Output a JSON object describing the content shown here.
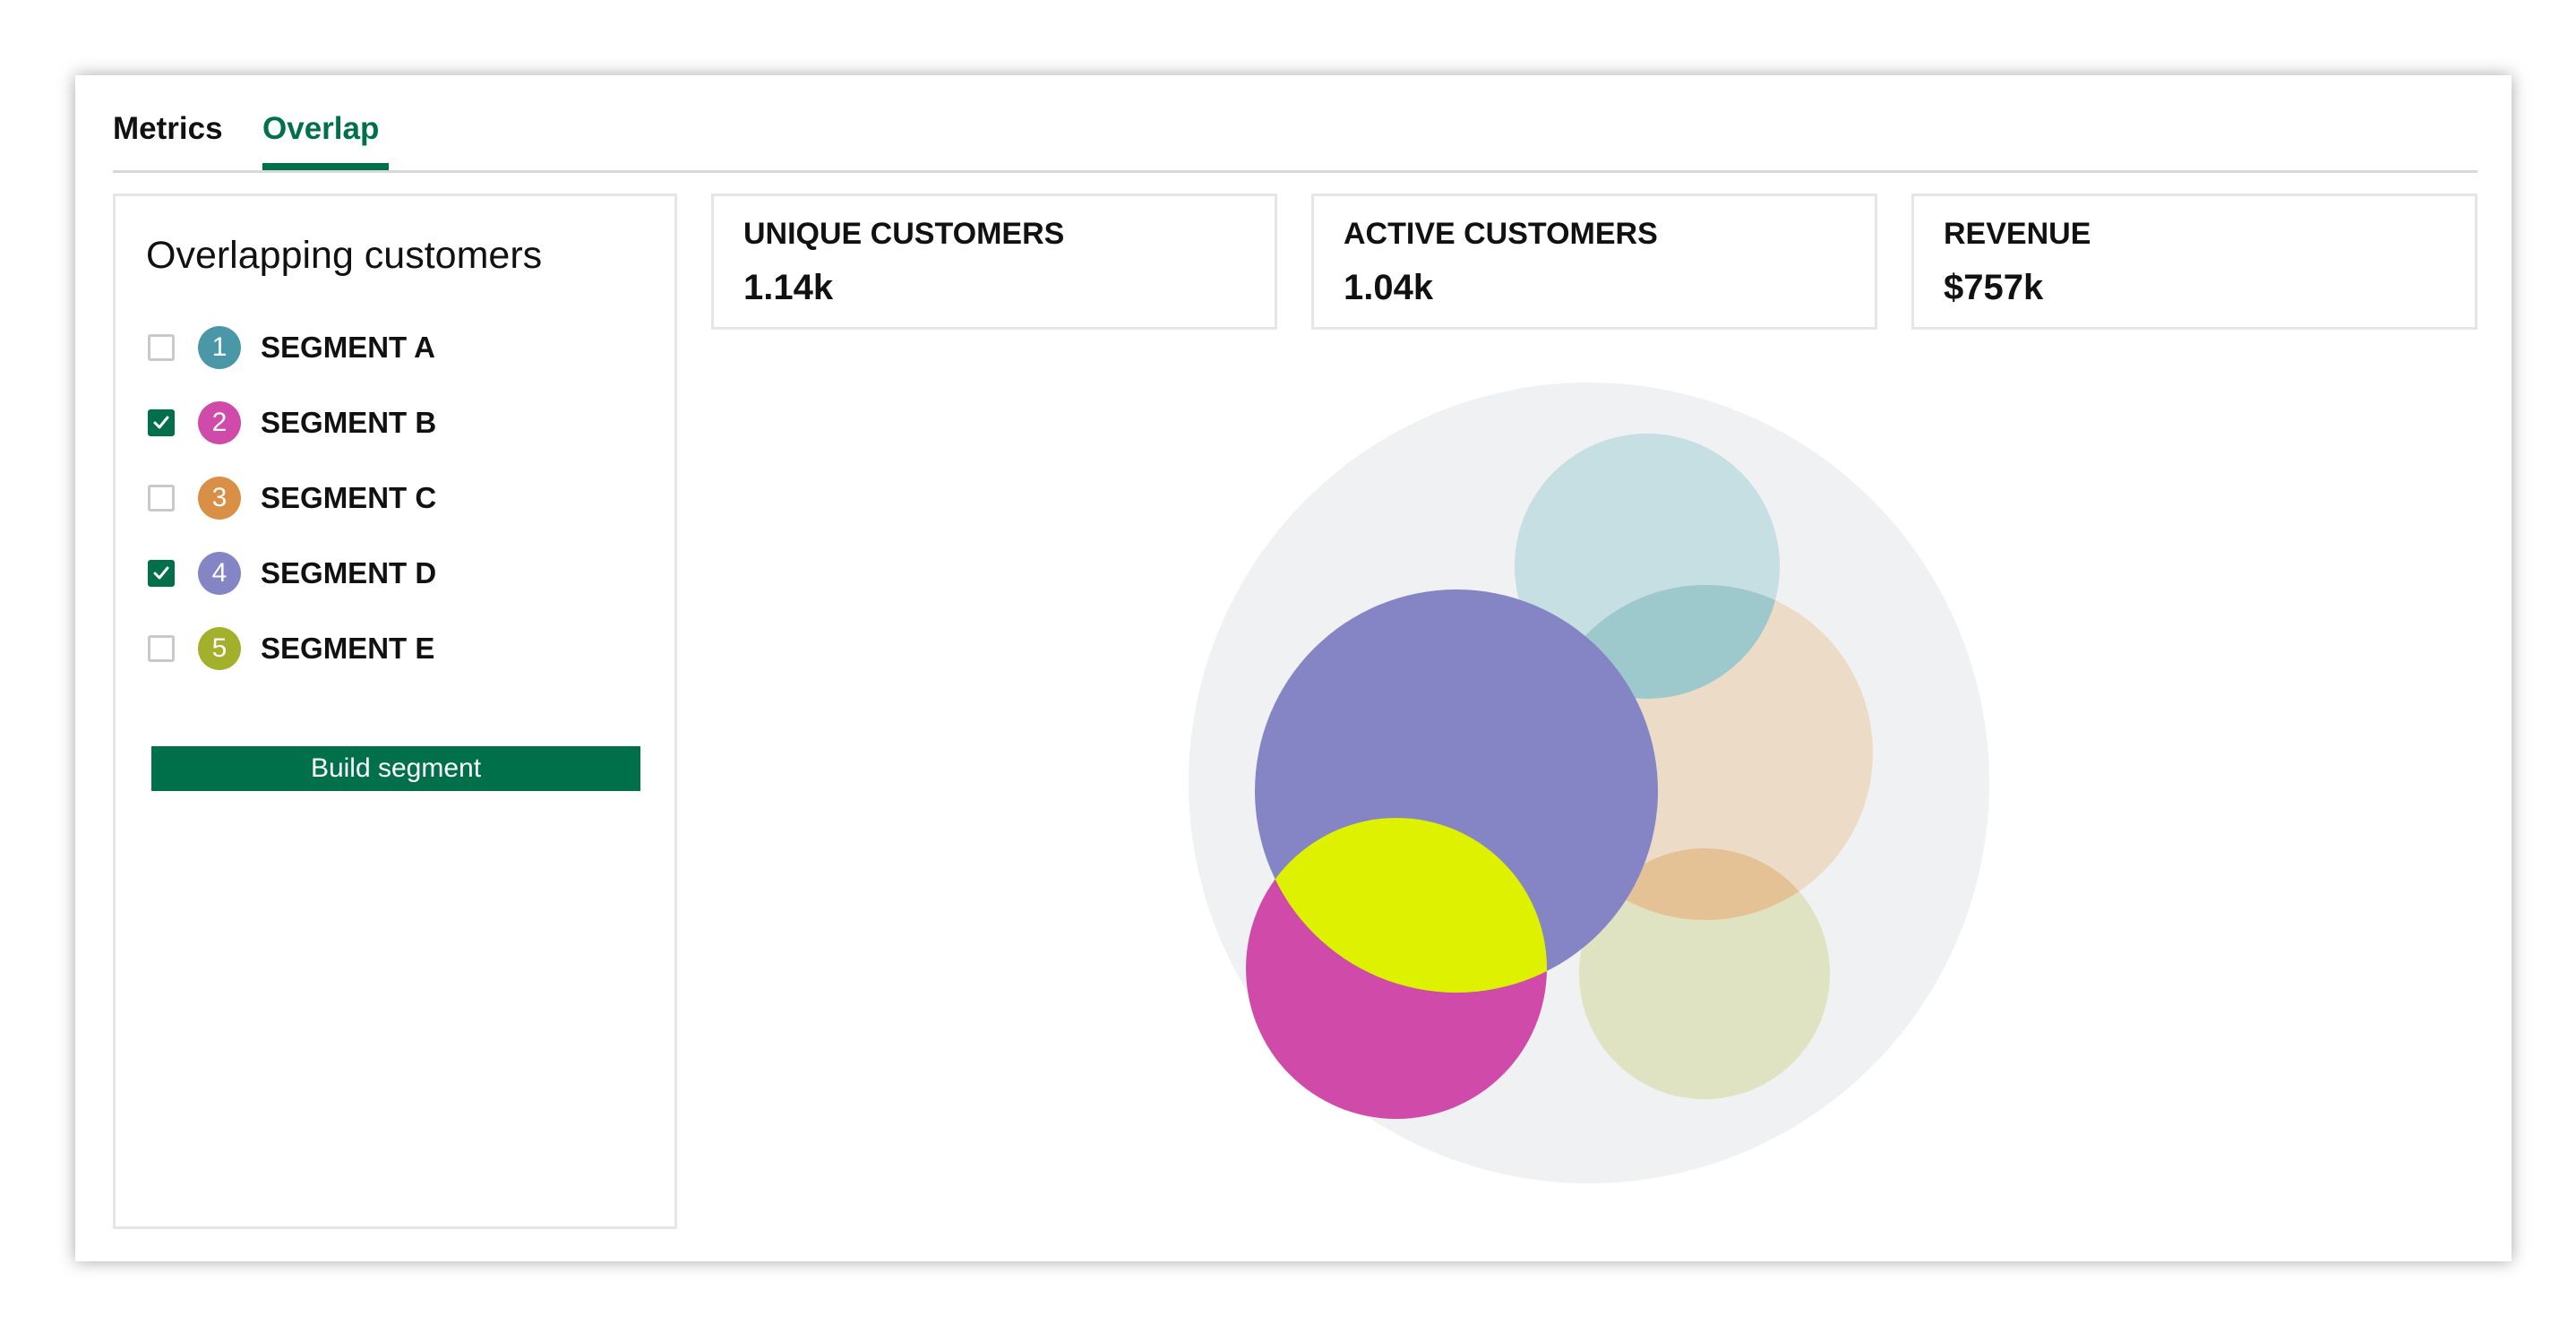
{
  "tabs": [
    {
      "label": "Metrics",
      "active": false
    },
    {
      "label": "Overlap",
      "active": true
    }
  ],
  "accent_color": "#00704a",
  "panel": {
    "title": "Overlapping customers",
    "segments": [
      {
        "number": "1",
        "label": "SEGMENT A",
        "checked": false,
        "color": "#4a97a8"
      },
      {
        "number": "2",
        "label": "SEGMENT B",
        "checked": true,
        "color": "#d04aa9"
      },
      {
        "number": "3",
        "label": "SEGMENT C",
        "checked": false,
        "color": "#d98f45"
      },
      {
        "number": "4",
        "label": "SEGMENT D",
        "checked": true,
        "color": "#8585c6"
      },
      {
        "number": "5",
        "label": "SEGMENT E",
        "checked": false,
        "color": "#a2b02c"
      }
    ],
    "build_button": "Build segment",
    "checkbox_icon": "check-icon"
  },
  "kpis": [
    {
      "label": "UNIQUE CUSTOMERS",
      "value": "1.14k"
    },
    {
      "label": "ACTIVE CUSTOMERS",
      "value": "1.04k"
    },
    {
      "label": "REVENUE",
      "value": "$757k"
    }
  ],
  "venn": {
    "background_color": "#f0f1f2",
    "overlap_highlight_color": "#def200",
    "sets": [
      {
        "segment": "SEGMENT A",
        "color": "#c5dfe2"
      },
      {
        "segment": "SEGMENT C",
        "color": "#ecdcc7"
      },
      {
        "segment": "SEGMENT E",
        "color": "#dfe3c2"
      },
      {
        "segment": "SEGMENT D",
        "color": "#8585c6"
      },
      {
        "segment": "SEGMENT B",
        "color": "#d04aa9"
      }
    ],
    "pairwise_overlaps": [
      {
        "between": [
          "SEGMENT A",
          "SEGMENT C"
        ],
        "color": "#9dc8cc"
      },
      {
        "between": [
          "SEGMENT C",
          "SEGMENT E"
        ],
        "color": "#e5c196"
      },
      {
        "between": [
          "SEGMENT B",
          "SEGMENT D"
        ],
        "color": "#def200"
      }
    ]
  }
}
